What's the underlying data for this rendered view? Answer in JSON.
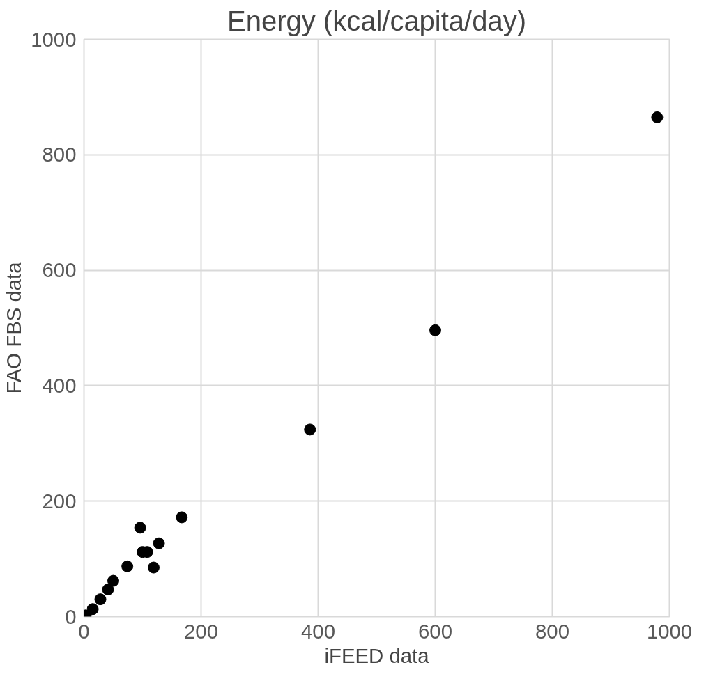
{
  "chart_data": {
    "type": "scatter",
    "title": "Energy (kcal/capita/day)",
    "xlabel": "iFEED data",
    "ylabel": "FAO FBS data",
    "x": [
      3,
      15,
      28,
      41,
      50,
      74,
      96,
      100,
      108,
      119,
      128,
      167,
      386,
      600,
      979
    ],
    "series": [
      {
        "color": "#000000",
        "values": [
          2,
          13,
          30,
          47,
          62,
          87,
          154,
          112,
          112,
          85,
          127,
          172,
          324,
          496,
          865
        ]
      }
    ],
    "xlim": [
      0,
      1000
    ],
    "ylim": [
      0,
      1000
    ],
    "xticks": [
      0,
      200,
      400,
      600,
      800,
      1000
    ],
    "yticks": [
      0,
      200,
      400,
      600,
      800,
      1000
    ],
    "grid": true,
    "marker": "circle"
  }
}
